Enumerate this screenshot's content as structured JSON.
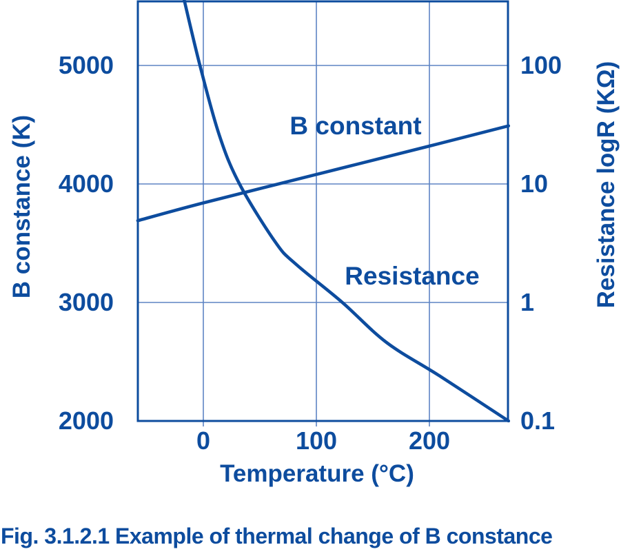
{
  "figure": {
    "caption": "Fig. 3.1.2.1 Example of thermal change of B constance"
  },
  "colors": {
    "primary": "#0d4c9e",
    "grid": "#5d84c4",
    "background": "#ffffff"
  },
  "chart_data": {
    "type": "line",
    "title": "",
    "grid": true,
    "x_axis": {
      "label": "Temperature (°C)",
      "ticks": [
        0,
        100,
        200
      ],
      "range": [
        -58,
        270
      ]
    },
    "y_axis_left": {
      "label": "B constance (K)",
      "scale": "linear",
      "ticks": [
        5000,
        4000,
        3000,
        2000
      ],
      "range": [
        2000,
        5540
      ]
    },
    "y_axis_right": {
      "label": "Resistance logR (KΩ)",
      "scale": "log",
      "ticks": [
        100,
        10,
        1,
        0.1
      ],
      "range": [
        0.1,
        350
      ]
    },
    "series": [
      {
        "name": "B constant",
        "axis": "left",
        "points": [
          [
            -58,
            3690
          ],
          [
            0,
            3840
          ],
          [
            100,
            4080
          ],
          [
            200,
            4320
          ],
          [
            270,
            4490
          ]
        ]
      },
      {
        "name": "Resistance",
        "axis": "right",
        "points": [
          [
            -17,
            360
          ],
          [
            -3,
            100
          ],
          [
            14,
            26
          ],
          [
            32,
            10
          ],
          [
            64,
            3.2
          ],
          [
            82,
            2.1
          ],
          [
            123,
            1
          ],
          [
            162,
            0.46
          ],
          [
            209,
            0.24
          ],
          [
            270,
            0.1
          ]
        ]
      }
    ]
  }
}
